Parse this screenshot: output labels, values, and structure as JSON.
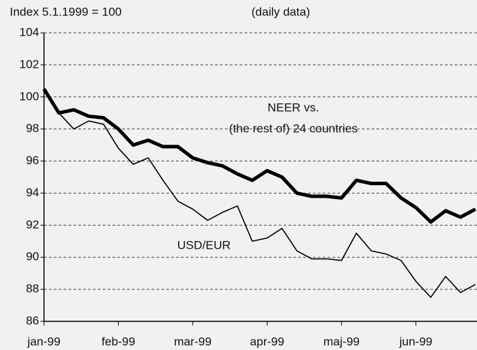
{
  "chart_data": {
    "type": "line",
    "subtitle_left": "Index 5.1.1999 = 100",
    "subtitle_right": "(daily data)",
    "annotation": "(the rest of) 24 countries",
    "categories": [
      "jan-99",
      null,
      null,
      null,
      null,
      "feb-99",
      null,
      null,
      null,
      null,
      "mar-99",
      null,
      null,
      null,
      null,
      "apr-99",
      null,
      null,
      null,
      null,
      "maj-99",
      null,
      null,
      null,
      null,
      "jun-99",
      null,
      null,
      null,
      null
    ],
    "series": [
      {
        "name": "NEER vs.",
        "color": "#000000",
        "width": 5,
        "values": [
          100.5,
          99.0,
          99.2,
          98.8,
          98.7,
          98.0,
          97.0,
          97.3,
          96.9,
          96.9,
          96.2,
          95.9,
          95.7,
          95.2,
          94.8,
          95.4,
          95.0,
          94.0,
          93.8,
          93.8,
          93.7,
          94.8,
          94.6,
          94.6,
          93.7,
          93.1,
          92.2,
          92.9,
          92.5,
          93.0
        ]
      },
      {
        "name": "USD/EUR",
        "color": "#000000",
        "width": 1.6,
        "values": [
          100.5,
          99.0,
          98.0,
          98.5,
          98.3,
          96.8,
          95.8,
          96.2,
          94.8,
          93.5,
          93.0,
          92.3,
          92.8,
          93.2,
          91.0,
          91.2,
          91.8,
          90.4,
          89.9,
          89.9,
          89.8,
          91.5,
          90.4,
          90.2,
          89.8,
          88.5,
          87.5,
          88.8,
          87.8,
          88.3
        ]
      }
    ],
    "ylim": [
      86,
      104
    ],
    "yticks": [
      86,
      88,
      90,
      92,
      94,
      96,
      98,
      100,
      102,
      104
    ],
    "grid": true
  }
}
